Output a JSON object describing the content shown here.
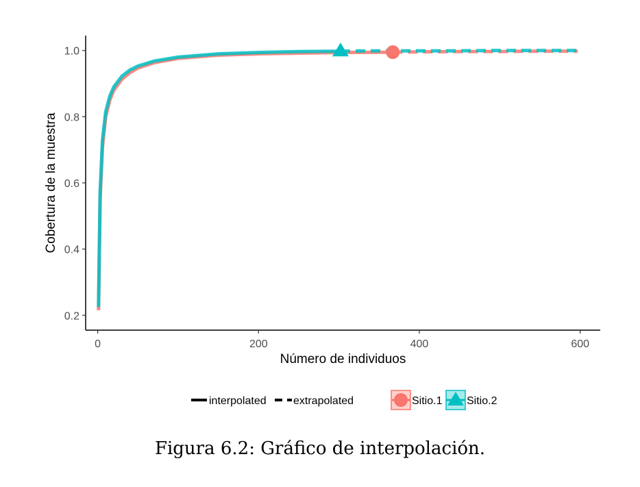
{
  "caption": "Figura 6.2: Gráfico de interpolación.",
  "chart_data": {
    "type": "line",
    "xlabel": "Número de individuos",
    "ylabel": "Cobertura de la muestra",
    "xlim": [
      -15,
      625
    ],
    "ylim": [
      0.155,
      1.045
    ],
    "x_ticks": [
      0,
      200,
      400,
      600
    ],
    "y_ticks": [
      0.2,
      0.4,
      0.6,
      0.8,
      1.0
    ],
    "x_tick_labels": [
      "0",
      "200",
      "400",
      "600"
    ],
    "y_tick_labels": [
      "0.2",
      "0.4",
      "0.6",
      "0.8",
      "1.0"
    ],
    "grid": false,
    "legend_position": "bottom",
    "linetype_legend": [
      {
        "label": "interpolated",
        "style": "solid"
      },
      {
        "label": "extrapolated",
        "style": "dashed"
      }
    ],
    "series": [
      {
        "name": "Sitio.1",
        "color": "#F8766D",
        "marker": "circle",
        "interpolated": {
          "x": [
            1,
            3,
            6,
            10,
            15,
            20,
            30,
            40,
            50,
            70,
            100,
            150,
            200,
            250,
            300,
            367
          ],
          "y": [
            0.215,
            0.55,
            0.71,
            0.8,
            0.85,
            0.88,
            0.913,
            0.933,
            0.947,
            0.963,
            0.976,
            0.986,
            0.99,
            0.992,
            0.994,
            0.995
          ]
        },
        "extrapolated": {
          "x": [
            367,
            400,
            450,
            500,
            550,
            597
          ],
          "y": [
            0.995,
            0.996,
            0.997,
            0.997,
            0.998,
            0.998
          ]
        },
        "observed": {
          "x": 367,
          "y": 0.995
        }
      },
      {
        "name": "Sitio.2",
        "color": "#00BFC4",
        "marker": "triangle",
        "interpolated": {
          "x": [
            1,
            3,
            6,
            10,
            15,
            20,
            30,
            40,
            50,
            70,
            100,
            150,
            200,
            250,
            302
          ],
          "y": [
            0.225,
            0.57,
            0.73,
            0.815,
            0.862,
            0.89,
            0.922,
            0.941,
            0.953,
            0.968,
            0.98,
            0.99,
            0.994,
            0.997,
            0.998
          ]
        },
        "extrapolated": {
          "x": [
            302,
            350,
            400,
            450,
            500,
            550,
            597
          ],
          "y": [
            0.998,
            0.999,
            0.999,
            0.999,
            1.0,
            1.0,
            1.0
          ]
        },
        "observed": {
          "x": 302,
          "y": 0.998
        }
      }
    ]
  }
}
